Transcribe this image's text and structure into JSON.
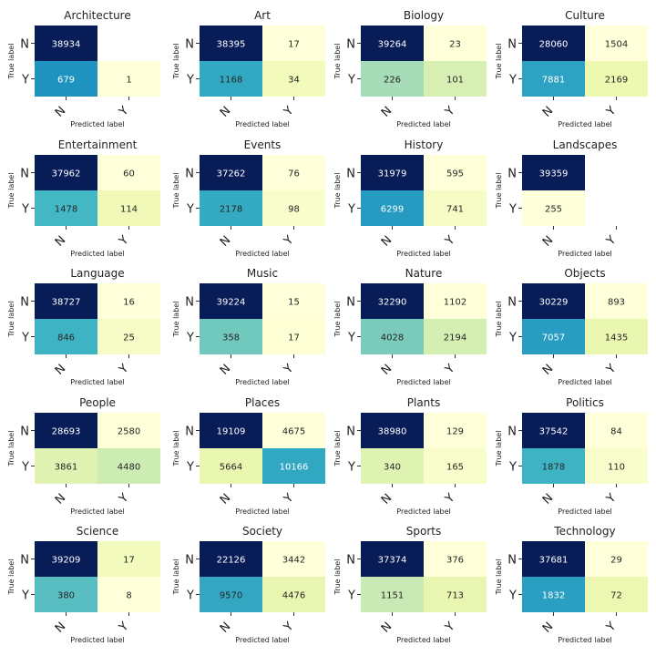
{
  "chart_data": [
    {
      "type": "heatmap",
      "title": "Architecture",
      "rows": [
        "N",
        "Y"
      ],
      "cols": [
        "N",
        "Y"
      ],
      "values": [
        [
          38934,
          null
        ],
        [
          679,
          1
        ]
      ],
      "xlabel": "Predicted label",
      "ylabel": "True label"
    },
    {
      "type": "heatmap",
      "title": "Art",
      "rows": [
        "N",
        "Y"
      ],
      "cols": [
        "N",
        "Y"
      ],
      "values": [
        [
          38395,
          17
        ],
        [
          1168,
          34
        ]
      ],
      "xlabel": "Predicted label",
      "ylabel": "True label"
    },
    {
      "type": "heatmap",
      "title": "Biology",
      "rows": [
        "N",
        "Y"
      ],
      "cols": [
        "N",
        "Y"
      ],
      "values": [
        [
          39264,
          23
        ],
        [
          226,
          101
        ]
      ],
      "xlabel": "Predicted label",
      "ylabel": "True label"
    },
    {
      "type": "heatmap",
      "title": "Culture",
      "rows": [
        "N",
        "Y"
      ],
      "cols": [
        "N",
        "Y"
      ],
      "values": [
        [
          28060,
          1504
        ],
        [
          7881,
          2169
        ]
      ],
      "xlabel": "Predicted label",
      "ylabel": "True label"
    },
    {
      "type": "heatmap",
      "title": "Entertainment",
      "rows": [
        "N",
        "Y"
      ],
      "cols": [
        "N",
        "Y"
      ],
      "values": [
        [
          37962,
          60
        ],
        [
          1478,
          114
        ]
      ],
      "xlabel": "Predicted label",
      "ylabel": "True label"
    },
    {
      "type": "heatmap",
      "title": "Events",
      "rows": [
        "N",
        "Y"
      ],
      "cols": [
        "N",
        "Y"
      ],
      "values": [
        [
          37262,
          76
        ],
        [
          2178,
          98
        ]
      ],
      "xlabel": "Predicted label",
      "ylabel": "True label"
    },
    {
      "type": "heatmap",
      "title": "History",
      "rows": [
        "N",
        "Y"
      ],
      "cols": [
        "N",
        "Y"
      ],
      "values": [
        [
          31979,
          595
        ],
        [
          6299,
          741
        ]
      ],
      "xlabel": "Predicted label",
      "ylabel": "True label"
    },
    {
      "type": "heatmap",
      "title": "Landscapes",
      "rows": [
        "N",
        "Y"
      ],
      "cols": [
        "N",
        "Y"
      ],
      "values": [
        [
          39359,
          null
        ],
        [
          255,
          null
        ]
      ],
      "xlabel": "Predicted label",
      "ylabel": "True label"
    },
    {
      "type": "heatmap",
      "title": "Language",
      "rows": [
        "N",
        "Y"
      ],
      "cols": [
        "N",
        "Y"
      ],
      "values": [
        [
          38727,
          16
        ],
        [
          846,
          25
        ]
      ],
      "xlabel": "Predicted label",
      "ylabel": "True label"
    },
    {
      "type": "heatmap",
      "title": "Music",
      "rows": [
        "N",
        "Y"
      ],
      "cols": [
        "N",
        "Y"
      ],
      "values": [
        [
          39224,
          15
        ],
        [
          358,
          17
        ]
      ],
      "xlabel": "Predicted label",
      "ylabel": "True label"
    },
    {
      "type": "heatmap",
      "title": "Nature",
      "rows": [
        "N",
        "Y"
      ],
      "cols": [
        "N",
        "Y"
      ],
      "values": [
        [
          32290,
          1102
        ],
        [
          4028,
          2194
        ]
      ],
      "xlabel": "Predicted label",
      "ylabel": "True label"
    },
    {
      "type": "heatmap",
      "title": "Objects",
      "rows": [
        "N",
        "Y"
      ],
      "cols": [
        "N",
        "Y"
      ],
      "values": [
        [
          30229,
          893
        ],
        [
          7057,
          1435
        ]
      ],
      "xlabel": "Predicted label",
      "ylabel": "True label"
    },
    {
      "type": "heatmap",
      "title": "People",
      "rows": [
        "N",
        "Y"
      ],
      "cols": [
        "N",
        "Y"
      ],
      "values": [
        [
          28693,
          2580
        ],
        [
          3861,
          4480
        ]
      ],
      "xlabel": "Predicted label",
      "ylabel": "True label"
    },
    {
      "type": "heatmap",
      "title": "Places",
      "rows": [
        "N",
        "Y"
      ],
      "cols": [
        "N",
        "Y"
      ],
      "values": [
        [
          19109,
          4675
        ],
        [
          5664,
          10166
        ]
      ],
      "xlabel": "Predicted label",
      "ylabel": "True label"
    },
    {
      "type": "heatmap",
      "title": "Plants",
      "rows": [
        "N",
        "Y"
      ],
      "cols": [
        "N",
        "Y"
      ],
      "values": [
        [
          38980,
          129
        ],
        [
          340,
          165
        ]
      ],
      "xlabel": "Predicted label",
      "ylabel": "True label"
    },
    {
      "type": "heatmap",
      "title": "Politics",
      "rows": [
        "N",
        "Y"
      ],
      "cols": [
        "N",
        "Y"
      ],
      "values": [
        [
          37542,
          84
        ],
        [
          1878,
          110
        ]
      ],
      "xlabel": "Predicted label",
      "ylabel": "True label"
    },
    {
      "type": "heatmap",
      "title": "Science",
      "rows": [
        "N",
        "Y"
      ],
      "cols": [
        "N",
        "Y"
      ],
      "values": [
        [
          39209,
          17
        ],
        [
          380,
          8
        ]
      ],
      "xlabel": "Predicted label",
      "ylabel": "True label"
    },
    {
      "type": "heatmap",
      "title": "Society",
      "rows": [
        "N",
        "Y"
      ],
      "cols": [
        "N",
        "Y"
      ],
      "values": [
        [
          22126,
          3442
        ],
        [
          9570,
          4476
        ]
      ],
      "xlabel": "Predicted label",
      "ylabel": "True label"
    },
    {
      "type": "heatmap",
      "title": "Sports",
      "rows": [
        "N",
        "Y"
      ],
      "cols": [
        "N",
        "Y"
      ],
      "values": [
        [
          37374,
          376
        ],
        [
          1151,
          713
        ]
      ],
      "xlabel": "Predicted label",
      "ylabel": "True label"
    },
    {
      "type": "heatmap",
      "title": "Technology",
      "rows": [
        "N",
        "Y"
      ],
      "cols": [
        "N",
        "Y"
      ],
      "values": [
        [
          37681,
          29
        ],
        [
          1832,
          72
        ]
      ],
      "xlabel": "Predicted label",
      "ylabel": "True label"
    }
  ],
  "colormap": [
    "#ffffd9",
    "#edf8b1",
    "#c7e9b4",
    "#7fcdbb",
    "#41b6c4",
    "#1d91c0",
    "#225ea8",
    "#253494",
    "#081d58"
  ],
  "colorscale": "log"
}
